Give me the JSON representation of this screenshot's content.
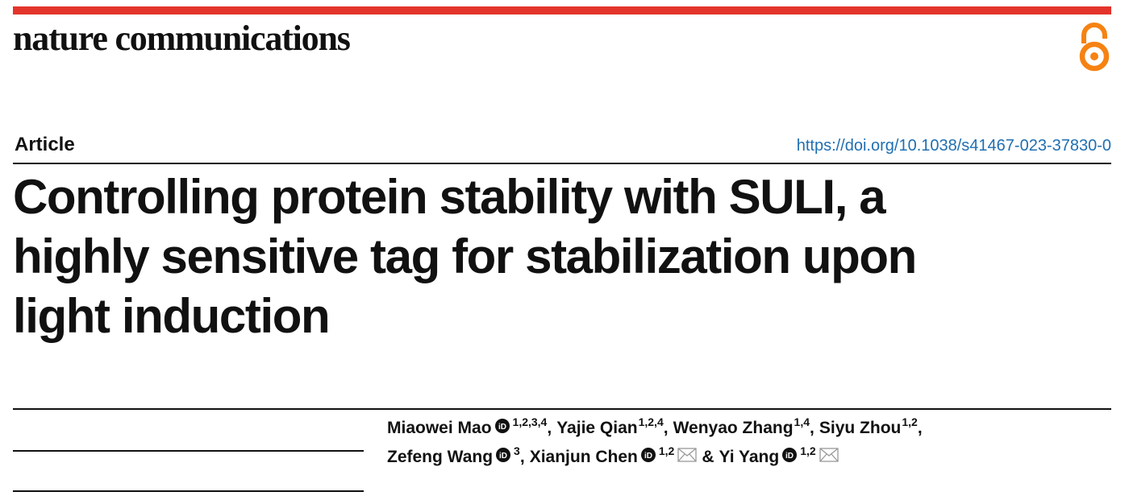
{
  "header": {
    "journal": "nature communications",
    "article_type": "Article",
    "doi": "https://doi.org/10.1038/s41467-023-37830-0"
  },
  "title_lines": [
    "Controlling protein stability with SULI, a",
    "highly sensitive tag for stabilization upon",
    "light induction"
  ],
  "authors": {
    "lines": [
      [
        {
          "name": "Miaowei Mao",
          "orcid": true,
          "sup": "1,2,3,4",
          "email": false,
          "separator": ","
        },
        {
          "name": "Yajie Qian",
          "orcid": false,
          "sup": "1,2,4",
          "email": false,
          "separator": ","
        },
        {
          "name": "Wenyao Zhang",
          "orcid": false,
          "sup": "1,4",
          "email": false,
          "separator": ","
        },
        {
          "name": "Siyu Zhou",
          "orcid": false,
          "sup": "1,2",
          "email": false,
          "separator": ","
        }
      ],
      [
        {
          "name": "Zefeng Wang",
          "orcid": true,
          "sup": "3",
          "email": false,
          "separator": ","
        },
        {
          "name": "Xianjun Chen",
          "orcid": true,
          "sup": "1,2",
          "email": true,
          "separator": "&"
        },
        {
          "name": "Yi Yang",
          "orcid": true,
          "sup": "1,2",
          "email": true
        }
      ]
    ]
  }
}
